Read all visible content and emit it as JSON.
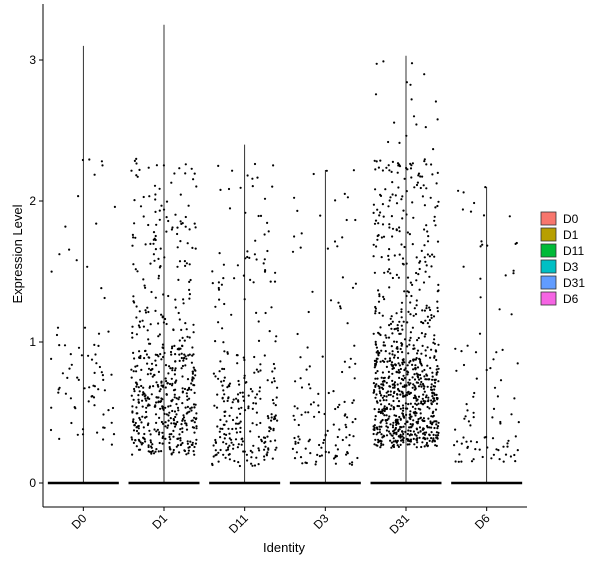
{
  "chart_data": {
    "type": "scatter",
    "subtype": "violin-jitter",
    "title": "",
    "xlabel": "Identity",
    "ylabel": "Expression Level",
    "ylim": [
      -0.18,
      3.35
    ],
    "yticks": [
      0,
      1,
      2,
      3
    ],
    "categories": [
      "D0",
      "D1",
      "D11",
      "D3",
      "D31",
      "D6"
    ],
    "legend": {
      "position": "right",
      "entries": [
        {
          "label": "D0",
          "color": "#F8766D"
        },
        {
          "label": "D1",
          "color": "#B79F00"
        },
        {
          "label": "D11",
          "color": "#00BA38"
        },
        {
          "label": "D3",
          "color": "#00BFC4"
        },
        {
          "label": "D31",
          "color": "#619CFF"
        },
        {
          "label": "D6",
          "color": "#F564E3"
        }
      ]
    },
    "groups": [
      {
        "name": "D0",
        "max": 3.1,
        "n_points": 80,
        "low": 0.25,
        "high": 3.1,
        "mode": 0.6
      },
      {
        "name": "D1",
        "max": 3.25,
        "n_points": 560,
        "low": 0.2,
        "high": 2.3,
        "mode": 0.55
      },
      {
        "name": "D11",
        "max": 2.4,
        "n_points": 280,
        "low": 0.12,
        "high": 2.4,
        "mode": 0.4
      },
      {
        "name": "D3",
        "max": 2.22,
        "n_points": 130,
        "low": 0.12,
        "high": 2.22,
        "mode": 0.35
      },
      {
        "name": "D31",
        "max": 3.03,
        "n_points": 900,
        "low": 0.25,
        "high": 3.03,
        "mode": 0.55
      },
      {
        "name": "D6",
        "max": 2.1,
        "n_points": 95,
        "low": 0.15,
        "high": 2.1,
        "mode": 0.4
      }
    ],
    "grid": false
  }
}
